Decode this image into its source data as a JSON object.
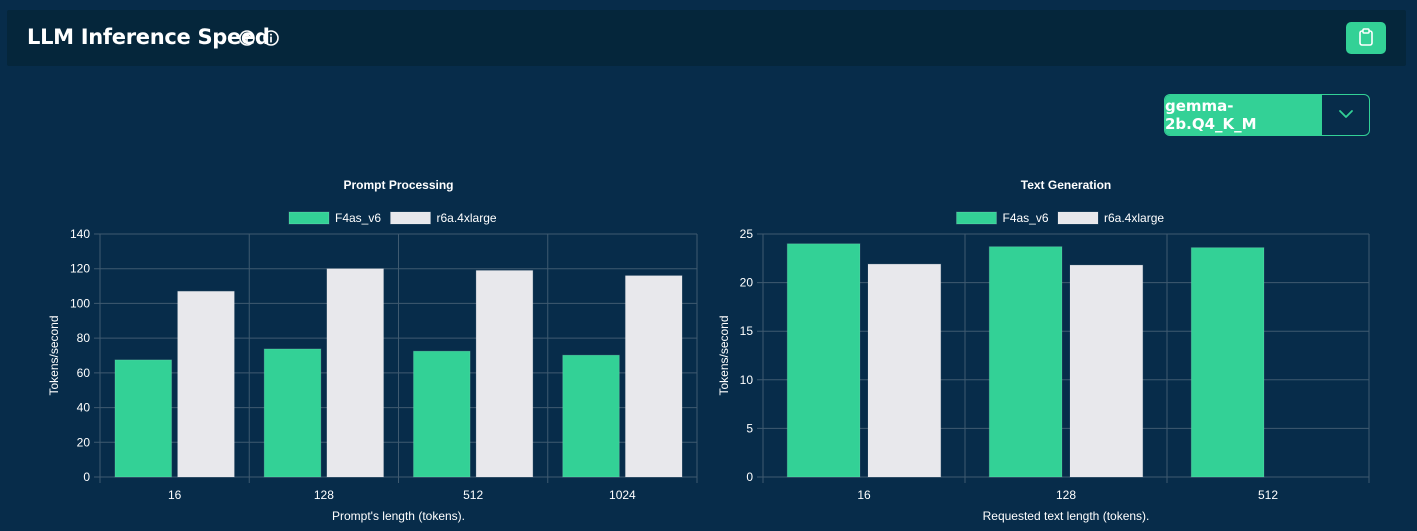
{
  "header": {
    "title": "LLM Inference Speed",
    "upload_icon": "arrow-up-circle-icon",
    "info_icon": "info-circle-icon",
    "clipboard_icon": "clipboard-icon"
  },
  "model_select": {
    "selected": "gemma-2b.Q4_K_M",
    "toggle_icon": "chevron-down-icon"
  },
  "colors": {
    "background": "#072c4a",
    "header": "#05263b",
    "accent": "#33d196",
    "series_2": "#e8e8ec",
    "grid": "#3f5a70"
  },
  "chart_data": [
    {
      "type": "bar",
      "title": "Prompt Processing",
      "xlabel": "Prompt's length (tokens).",
      "ylabel": "Tokens/second",
      "categories": [
        "16",
        "128",
        "512",
        "1024"
      ],
      "ylim": [
        0,
        140
      ],
      "yticks": [
        0,
        20,
        40,
        60,
        80,
        100,
        120,
        140
      ],
      "grid": true,
      "legend": "top-center",
      "series": [
        {
          "name": "F4as_v6",
          "color": "#33d196",
          "values": [
            67.5,
            73.8,
            72.5,
            70.2
          ]
        },
        {
          "name": "r6a.4xlarge",
          "color": "#e8e8ec",
          "values": [
            107,
            120,
            119,
            116
          ]
        }
      ]
    },
    {
      "type": "bar",
      "title": "Text Generation",
      "xlabel": "Requested text length (tokens).",
      "ylabel": "Tokens/second",
      "categories": [
        "16",
        "128",
        "512"
      ],
      "ylim": [
        0,
        25
      ],
      "yticks": [
        0,
        5,
        10,
        15,
        20,
        25
      ],
      "grid": true,
      "legend": "top-center",
      "series": [
        {
          "name": "F4as_v6",
          "color": "#33d196",
          "values": [
            24.0,
            23.7,
            23.6
          ]
        },
        {
          "name": "r6a.4xlarge",
          "color": "#e8e8ec",
          "values": [
            21.9,
            21.8,
            null
          ]
        }
      ]
    }
  ]
}
